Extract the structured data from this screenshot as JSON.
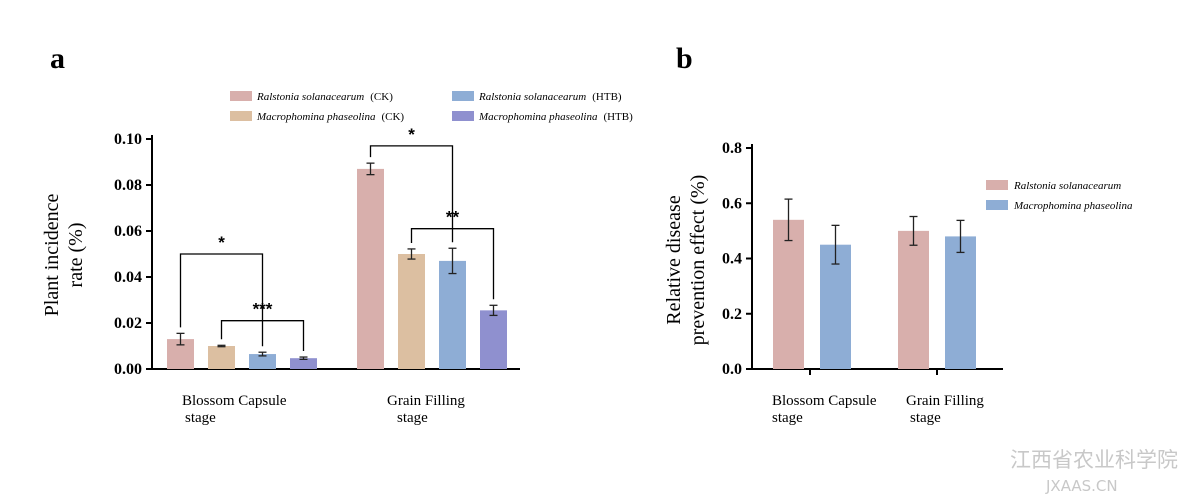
{
  "colors": {
    "rs_ck": "#d8afac",
    "mp_ck": "#dcbfa1",
    "rs_htb": "#8eadd5",
    "mp_htb": "#8f90cf",
    "axis": "#000000"
  },
  "watermark": {
    "line1": "江西省农业科学院",
    "line2": "JXAAS.CN"
  },
  "chart_data": [
    {
      "panel": "a",
      "type": "bar",
      "ylabel_line1": "Plant incidence",
      "ylabel_line2": "rate (%)",
      "ylim": [
        0,
        0.1
      ],
      "yticks": [
        "0.00",
        "0.02",
        "0.04",
        "0.06",
        "0.08",
        "0.10"
      ],
      "categories": [
        {
          "line1": "Blossom Capsule",
          "line2": "stage"
        },
        {
          "line1": "Grain Filling",
          "line2": "stage"
        }
      ],
      "series": [
        {
          "name": "Ralstonia solanacearum",
          "suffix": "(CK)",
          "color_key": "rs_ck",
          "values": [
            0.013,
            0.087
          ],
          "errors": [
            0.0025,
            0.0025
          ]
        },
        {
          "name": "Macrophomina phaseolina",
          "suffix": "(CK)",
          "color_key": "mp_ck",
          "values": [
            0.01,
            0.05
          ],
          "errors": [
            0.0003,
            0.0022
          ]
        },
        {
          "name": "Ralstonia solanacearum",
          "suffix": "(HTB)",
          "color_key": "rs_htb",
          "values": [
            0.0065,
            0.047
          ],
          "errors": [
            0.0008,
            0.0055
          ]
        },
        {
          "name": "Macrophomina phaseolina",
          "suffix": "(HTB)",
          "color_key": "mp_htb",
          "values": [
            0.0047,
            0.0255
          ],
          "errors": [
            0.0005,
            0.0022
          ]
        }
      ],
      "legend_placement": "top",
      "significance": [
        {
          "label": "*",
          "category": 0,
          "from_series": 0,
          "to_series": 2,
          "level": 0.05
        },
        {
          "label": "***",
          "category": 0,
          "from_series": 1,
          "to_series": 3,
          "level": 0.021
        },
        {
          "label": "*",
          "category": 1,
          "from_series": 0,
          "to_series": 2,
          "level": 0.097
        },
        {
          "label": "**",
          "category": 1,
          "from_series": 1,
          "to_series": 3,
          "level": 0.061
        }
      ]
    },
    {
      "panel": "b",
      "type": "bar",
      "ylabel_line1": "Relative disease",
      "ylabel_line2": "prevention effect (%)",
      "ylim": [
        0,
        0.8
      ],
      "yticks": [
        "0.0",
        "0.2",
        "0.4",
        "0.6",
        "0.8"
      ],
      "categories": [
        {
          "line1": "Blossom Capsule",
          "line2": "stage"
        },
        {
          "line1": "Grain Filling",
          "line2": "stage"
        }
      ],
      "series": [
        {
          "name": "Ralstonia solanacearum",
          "color_key": "rs_ck",
          "values": [
            0.54,
            0.5
          ],
          "errors": [
            0.075,
            0.052
          ]
        },
        {
          "name": "Macrophomina phaseolina",
          "color_key": "rs_htb",
          "values": [
            0.45,
            0.48
          ],
          "errors": [
            0.07,
            0.058
          ]
        }
      ],
      "legend_placement": "right"
    }
  ]
}
